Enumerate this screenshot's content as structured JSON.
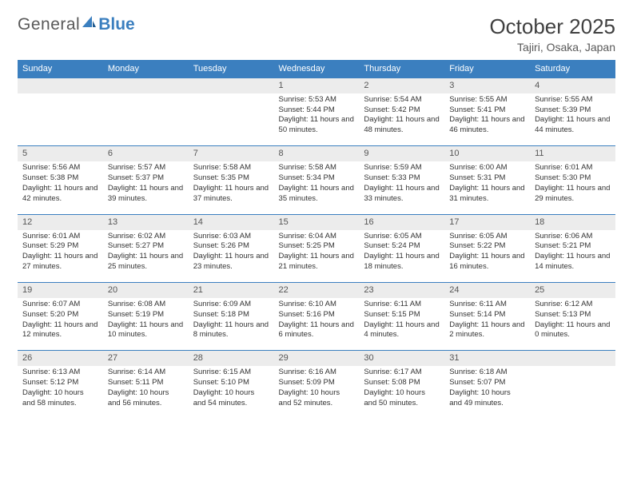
{
  "logo": {
    "text1": "General",
    "text2": "Blue"
  },
  "title": "October 2025",
  "location": "Tajiri, Osaka, Japan",
  "colors": {
    "header_bg": "#3b7fbf",
    "header_text": "#ffffff",
    "daynum_bg": "#ececec",
    "border": "#3b7fbf",
    "body_text": "#333333",
    "title_text": "#404040"
  },
  "weekdays": [
    "Sunday",
    "Monday",
    "Tuesday",
    "Wednesday",
    "Thursday",
    "Friday",
    "Saturday"
  ],
  "weeks": [
    [
      null,
      null,
      null,
      {
        "n": "1",
        "sr": "Sunrise: 5:53 AM",
        "ss": "Sunset: 5:44 PM",
        "dl": "Daylight: 11 hours and 50 minutes."
      },
      {
        "n": "2",
        "sr": "Sunrise: 5:54 AM",
        "ss": "Sunset: 5:42 PM",
        "dl": "Daylight: 11 hours and 48 minutes."
      },
      {
        "n": "3",
        "sr": "Sunrise: 5:55 AM",
        "ss": "Sunset: 5:41 PM",
        "dl": "Daylight: 11 hours and 46 minutes."
      },
      {
        "n": "4",
        "sr": "Sunrise: 5:55 AM",
        "ss": "Sunset: 5:39 PM",
        "dl": "Daylight: 11 hours and 44 minutes."
      }
    ],
    [
      {
        "n": "5",
        "sr": "Sunrise: 5:56 AM",
        "ss": "Sunset: 5:38 PM",
        "dl": "Daylight: 11 hours and 42 minutes."
      },
      {
        "n": "6",
        "sr": "Sunrise: 5:57 AM",
        "ss": "Sunset: 5:37 PM",
        "dl": "Daylight: 11 hours and 39 minutes."
      },
      {
        "n": "7",
        "sr": "Sunrise: 5:58 AM",
        "ss": "Sunset: 5:35 PM",
        "dl": "Daylight: 11 hours and 37 minutes."
      },
      {
        "n": "8",
        "sr": "Sunrise: 5:58 AM",
        "ss": "Sunset: 5:34 PM",
        "dl": "Daylight: 11 hours and 35 minutes."
      },
      {
        "n": "9",
        "sr": "Sunrise: 5:59 AM",
        "ss": "Sunset: 5:33 PM",
        "dl": "Daylight: 11 hours and 33 minutes."
      },
      {
        "n": "10",
        "sr": "Sunrise: 6:00 AM",
        "ss": "Sunset: 5:31 PM",
        "dl": "Daylight: 11 hours and 31 minutes."
      },
      {
        "n": "11",
        "sr": "Sunrise: 6:01 AM",
        "ss": "Sunset: 5:30 PM",
        "dl": "Daylight: 11 hours and 29 minutes."
      }
    ],
    [
      {
        "n": "12",
        "sr": "Sunrise: 6:01 AM",
        "ss": "Sunset: 5:29 PM",
        "dl": "Daylight: 11 hours and 27 minutes."
      },
      {
        "n": "13",
        "sr": "Sunrise: 6:02 AM",
        "ss": "Sunset: 5:27 PM",
        "dl": "Daylight: 11 hours and 25 minutes."
      },
      {
        "n": "14",
        "sr": "Sunrise: 6:03 AM",
        "ss": "Sunset: 5:26 PM",
        "dl": "Daylight: 11 hours and 23 minutes."
      },
      {
        "n": "15",
        "sr": "Sunrise: 6:04 AM",
        "ss": "Sunset: 5:25 PM",
        "dl": "Daylight: 11 hours and 21 minutes."
      },
      {
        "n": "16",
        "sr": "Sunrise: 6:05 AM",
        "ss": "Sunset: 5:24 PM",
        "dl": "Daylight: 11 hours and 18 minutes."
      },
      {
        "n": "17",
        "sr": "Sunrise: 6:05 AM",
        "ss": "Sunset: 5:22 PM",
        "dl": "Daylight: 11 hours and 16 minutes."
      },
      {
        "n": "18",
        "sr": "Sunrise: 6:06 AM",
        "ss": "Sunset: 5:21 PM",
        "dl": "Daylight: 11 hours and 14 minutes."
      }
    ],
    [
      {
        "n": "19",
        "sr": "Sunrise: 6:07 AM",
        "ss": "Sunset: 5:20 PM",
        "dl": "Daylight: 11 hours and 12 minutes."
      },
      {
        "n": "20",
        "sr": "Sunrise: 6:08 AM",
        "ss": "Sunset: 5:19 PM",
        "dl": "Daylight: 11 hours and 10 minutes."
      },
      {
        "n": "21",
        "sr": "Sunrise: 6:09 AM",
        "ss": "Sunset: 5:18 PM",
        "dl": "Daylight: 11 hours and 8 minutes."
      },
      {
        "n": "22",
        "sr": "Sunrise: 6:10 AM",
        "ss": "Sunset: 5:16 PM",
        "dl": "Daylight: 11 hours and 6 minutes."
      },
      {
        "n": "23",
        "sr": "Sunrise: 6:11 AM",
        "ss": "Sunset: 5:15 PM",
        "dl": "Daylight: 11 hours and 4 minutes."
      },
      {
        "n": "24",
        "sr": "Sunrise: 6:11 AM",
        "ss": "Sunset: 5:14 PM",
        "dl": "Daylight: 11 hours and 2 minutes."
      },
      {
        "n": "25",
        "sr": "Sunrise: 6:12 AM",
        "ss": "Sunset: 5:13 PM",
        "dl": "Daylight: 11 hours and 0 minutes."
      }
    ],
    [
      {
        "n": "26",
        "sr": "Sunrise: 6:13 AM",
        "ss": "Sunset: 5:12 PM",
        "dl": "Daylight: 10 hours and 58 minutes."
      },
      {
        "n": "27",
        "sr": "Sunrise: 6:14 AM",
        "ss": "Sunset: 5:11 PM",
        "dl": "Daylight: 10 hours and 56 minutes."
      },
      {
        "n": "28",
        "sr": "Sunrise: 6:15 AM",
        "ss": "Sunset: 5:10 PM",
        "dl": "Daylight: 10 hours and 54 minutes."
      },
      {
        "n": "29",
        "sr": "Sunrise: 6:16 AM",
        "ss": "Sunset: 5:09 PM",
        "dl": "Daylight: 10 hours and 52 minutes."
      },
      {
        "n": "30",
        "sr": "Sunrise: 6:17 AM",
        "ss": "Sunset: 5:08 PM",
        "dl": "Daylight: 10 hours and 50 minutes."
      },
      {
        "n": "31",
        "sr": "Sunrise: 6:18 AM",
        "ss": "Sunset: 5:07 PM",
        "dl": "Daylight: 10 hours and 49 minutes."
      },
      null
    ]
  ]
}
